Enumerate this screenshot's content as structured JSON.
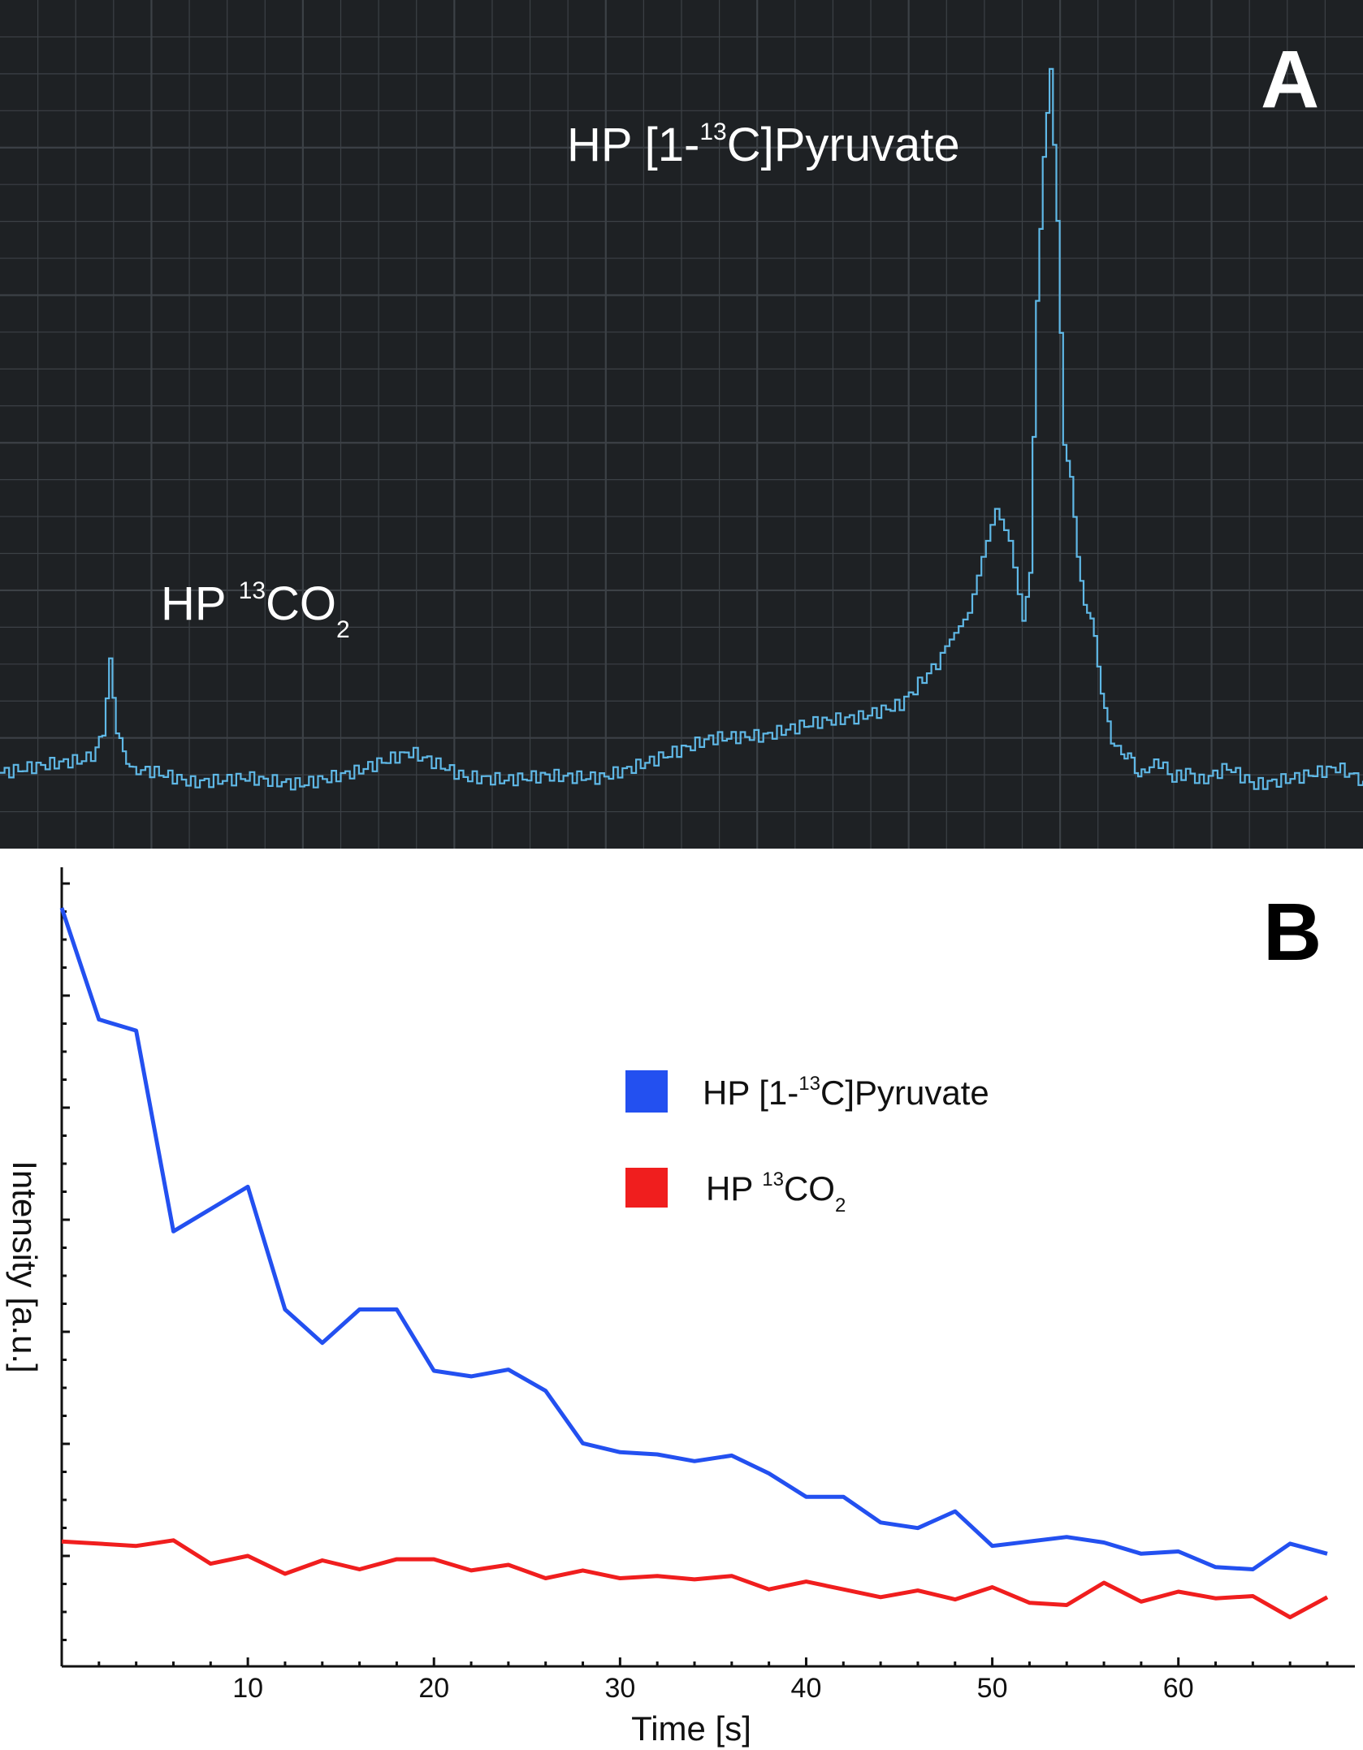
{
  "chart_data": [
    {
      "type": "line",
      "panel_letter": "A",
      "title": "",
      "xlabel": "",
      "ylabel": "",
      "grid": true,
      "background": "#1e2124",
      "grid_color": "#3c4146",
      "line_color": "#5fb8e6",
      "x_range": [
        0,
        100
      ],
      "y_range": [
        0,
        100
      ],
      "series": [
        {
          "name": "spectrum",
          "x": [
            0,
            6,
            7,
            7.5,
            8,
            8.5,
            9,
            9.5,
            10,
            11,
            14,
            18,
            22,
            26,
            30,
            34,
            37,
            40,
            44,
            48,
            52,
            56,
            60,
            63,
            66,
            69,
            71,
            72,
            73,
            74,
            75,
            75.5,
            76,
            76.5,
            77,
            77.5,
            78,
            78.5,
            79,
            79.5,
            80,
            80.5,
            81,
            81.5,
            82,
            82.5,
            83,
            83.5,
            84,
            85,
            86,
            87,
            88,
            89,
            90,
            92,
            95,
            98,
            100
          ],
          "y": [
            11,
            12,
            13,
            17,
            24,
            17,
            13,
            12,
            11,
            11,
            10,
            11,
            10,
            11,
            13,
            10,
            10,
            11,
            11,
            13,
            15,
            15,
            17,
            18,
            20,
            26,
            31,
            38,
            44,
            40,
            30,
            36,
            70,
            88,
            99,
            80,
            52,
            48,
            38,
            32,
            30,
            25,
            18,
            16,
            13,
            14,
            12,
            11,
            11,
            12,
            10,
            11,
            10,
            11,
            12,
            10,
            11,
            12,
            10
          ]
        }
      ],
      "annotations": [
        {
          "label_main": "HP [1-",
          "label_sup": "13",
          "label_rest": "C]Pyruvate"
        },
        {
          "label_main": "HP ",
          "label_sup": "13",
          "label_rest": "CO",
          "label_sub": "2"
        }
      ]
    },
    {
      "type": "line",
      "panel_letter": "B",
      "title": "",
      "xlabel": "Time [s]",
      "ylabel": "Intensity [a.u.]",
      "xlim": [
        0,
        69.5
      ],
      "ylim": [
        0,
        68
      ],
      "x_ticks": [
        10,
        20,
        30,
        40,
        50,
        60
      ],
      "x_tick_labels": [
        "10",
        "20",
        "30",
        "40",
        "50",
        "60"
      ],
      "legend_position": "upper-right",
      "series": [
        {
          "name": "HP [1-13C]Pyruvate",
          "legend_main": "HP [1-",
          "legend_sup": "13",
          "legend_rest": "C]Pyruvate",
          "color": "#2350f0",
          "x": [
            0,
            2,
            4,
            6,
            8,
            10,
            12,
            14,
            16,
            18,
            20,
            22,
            24,
            26,
            28,
            30,
            32,
            34,
            36,
            38,
            40,
            42,
            44,
            46,
            48,
            50,
            52,
            54,
            56,
            58,
            60,
            62,
            64,
            66,
            68
          ],
          "y": [
            68,
            58,
            57,
            39,
            41,
            43,
            32,
            29,
            32,
            32,
            26.5,
            26,
            26.6,
            24.7,
            20,
            19.2,
            19,
            18.4,
            18.9,
            17.3,
            15.2,
            15.2,
            12.9,
            12.4,
            13.9,
            10.8,
            11.2,
            11.6,
            11.1,
            10.1,
            10.3,
            8.9,
            8.7,
            11,
            10.1
          ]
        },
        {
          "name": "HP 13CO2",
          "legend_main": "HP ",
          "legend_sup": "13",
          "legend_rest": "CO",
          "legend_sub": "2",
          "color": "#f01e1e",
          "x": [
            0,
            2,
            4,
            6,
            8,
            10,
            12,
            14,
            16,
            18,
            20,
            22,
            24,
            26,
            28,
            30,
            32,
            34,
            36,
            38,
            40,
            42,
            44,
            46,
            48,
            50,
            52,
            54,
            56,
            58,
            60,
            62,
            64,
            66,
            68
          ],
          "y": [
            11.2,
            11,
            10.8,
            11.3,
            9.2,
            9.9,
            8.3,
            9.5,
            8.7,
            9.6,
            9.6,
            8.6,
            9.1,
            7.9,
            8.6,
            7.9,
            8.1,
            7.8,
            8.1,
            6.9,
            7.6,
            6.9,
            6.2,
            6.8,
            6,
            7.1,
            5.7,
            5.5,
            7.5,
            5.8,
            6.7,
            6.1,
            6.3,
            4.4,
            6.2
          ]
        }
      ]
    }
  ]
}
